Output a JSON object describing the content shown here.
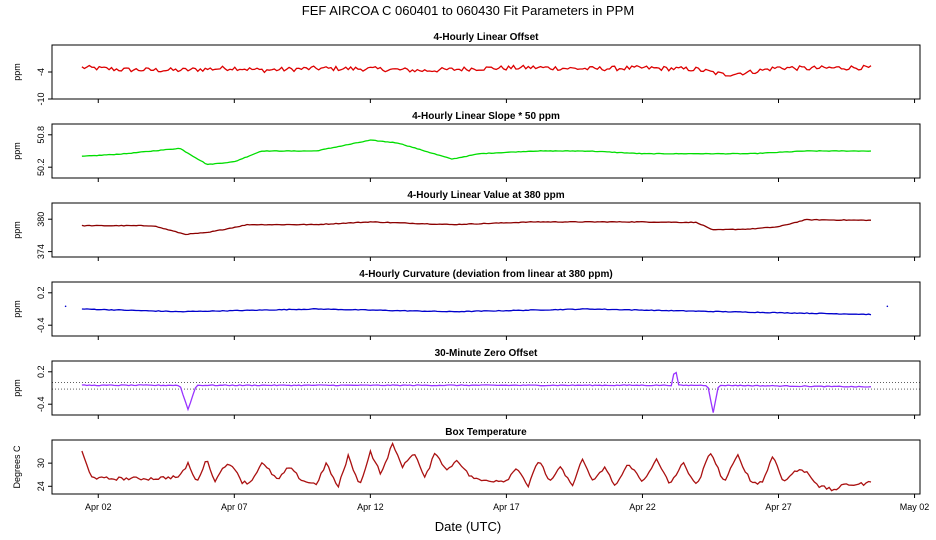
{
  "figure": {
    "title": "FEF   AIRCOA C   060401 to 060430   Fit Parameters in PPM",
    "xlabel": "Date (UTC)",
    "xticks": [
      "Apr 02",
      "Apr 07",
      "Apr 12",
      "Apr 17",
      "Apr 22",
      "Apr 27",
      "May 02"
    ]
  },
  "colors": {
    "offset": "#dd0000",
    "slope": "#00dd00",
    "value": "#8b0000",
    "curvature": "#0000cc",
    "zero": "#9933ff",
    "temperature": "#aa1111"
  },
  "chart_data": [
    {
      "type": "line",
      "title": "4-Hourly Linear Offset",
      "ylabel": "ppm",
      "yticks": [
        "-10",
        "-4"
      ],
      "ylim": [
        -10,
        2
      ],
      "x_range_days": [
        1,
        31
      ],
      "series_color": "offset",
      "x": [
        1.4,
        3,
        5,
        7,
        8,
        10,
        12,
        14,
        16,
        18,
        20,
        22,
        24,
        25,
        26,
        27,
        28,
        30,
        30.4
      ],
      "values": [
        -3,
        -3.5,
        -3.6,
        -3.1,
        -3.6,
        -3.2,
        -3.3,
        -3.7,
        -3.2,
        -3.0,
        -3.3,
        -3.1,
        -3.4,
        -4.6,
        -4.0,
        -3.0,
        -3.2,
        -3.0,
        -3.1
      ]
    },
    {
      "type": "line",
      "title": "4-Hourly Linear Slope * 50 ppm",
      "ylabel": "ppm",
      "yticks": [
        "50.2",
        "50.8"
      ],
      "ylim": [
        50.0,
        51.0
      ],
      "x_range_days": [
        1,
        31
      ],
      "series_color": "slope",
      "x": [
        1.4,
        3,
        5,
        6,
        7,
        8,
        10,
        12,
        13,
        15,
        16,
        18,
        20,
        22,
        24,
        26,
        28,
        30,
        30.4
      ],
      "values": [
        50.4,
        50.45,
        50.55,
        50.25,
        50.3,
        50.5,
        50.5,
        50.7,
        50.65,
        50.35,
        50.45,
        50.5,
        50.5,
        50.45,
        50.45,
        50.45,
        50.5,
        50.5,
        50.5
      ]
    },
    {
      "type": "line",
      "title": "4-Hourly Linear Value at 380 ppm",
      "ylabel": "ppm",
      "yticks": [
        "374",
        "380"
      ],
      "ylim": [
        373,
        383
      ],
      "x_range_days": [
        1,
        31
      ],
      "series_color": "value",
      "x": [
        1.4,
        4,
        5.2,
        6,
        7,
        7.5,
        10,
        12,
        15,
        18,
        22,
        24,
        24.6,
        26,
        27,
        28,
        30.4
      ],
      "values": [
        378.8,
        378.8,
        377.2,
        377.5,
        378.5,
        379.0,
        379.0,
        379.5,
        379.0,
        379.5,
        379.5,
        379.4,
        378.0,
        378.2,
        378.6,
        379.9,
        379.8
      ]
    },
    {
      "type": "line",
      "title": "4-Hourly Curvature (deviation from linear at 380 ppm)",
      "ylabel": "ppm",
      "yticks": [
        "-0.4",
        "0.2"
      ],
      "ylim": [
        -0.6,
        0.4
      ],
      "x_range_days": [
        1,
        31
      ],
      "series_color": "curvature",
      "x": [
        1.4,
        5,
        10,
        15,
        20,
        25,
        30.4
      ],
      "values": [
        -0.1,
        -0.15,
        -0.1,
        -0.15,
        -0.1,
        -0.15,
        -0.2
      ]
    },
    {
      "type": "line",
      "title": "30-Minute Zero Offset",
      "ylabel": "ppm",
      "yticks": [
        "-0.4",
        "0.2"
      ],
      "ylim": [
        -0.6,
        0.4
      ],
      "reference_lines": [
        0.0,
        -0.12
      ],
      "x_range_days": [
        1,
        31
      ],
      "series_color": "zero",
      "x": [
        1.4,
        5.0,
        5.3,
        5.6,
        10,
        15,
        20,
        23.1,
        23.2,
        23.3,
        24.4,
        24.6,
        24.8,
        30.4
      ],
      "values": [
        -0.05,
        -0.05,
        -0.5,
        -0.05,
        -0.05,
        -0.05,
        -0.05,
        -0.05,
        0.35,
        -0.05,
        -0.05,
        -0.55,
        -0.05,
        -0.08
      ]
    },
    {
      "type": "line",
      "title": "Box Temperature",
      "ylabel": "Degrees C",
      "yticks": [
        "24",
        "30"
      ],
      "ylim": [
        22,
        36
      ],
      "x_range_days": [
        1,
        31
      ],
      "series_color": "temperature",
      "x": [
        1.4,
        1.7,
        2,
        3,
        4,
        5,
        5.3,
        5.6,
        6,
        6.3,
        6.6,
        7,
        7.3,
        7.6,
        8,
        8.3,
        8.6,
        9,
        9.5,
        10,
        10.4,
        10.8,
        11.2,
        11.6,
        12,
        12.4,
        12.8,
        13.2,
        13.6,
        14,
        14.4,
        14.8,
        15.2,
        15.6,
        16,
        17,
        17.4,
        17.8,
        18.2,
        18.6,
        19,
        19.4,
        19.8,
        20.2,
        20.6,
        21,
        21.5,
        22,
        22.5,
        23,
        23.5,
        24,
        24.5,
        25,
        25.5,
        26,
        26.4,
        26.8,
        27.2,
        27.6,
        28,
        28.5,
        29,
        29.5,
        30,
        30.4
      ],
      "values": [
        33,
        27,
        26,
        26,
        26,
        26.5,
        30,
        25,
        31,
        25,
        29.5,
        29,
        25,
        25,
        30,
        28,
        25.5,
        29,
        25.5,
        24.5,
        30,
        23.5,
        32,
        24,
        33,
        27,
        35,
        29,
        33,
        26,
        33,
        28,
        31,
        27,
        25.5,
        25.5,
        29,
        24,
        31,
        25,
        29,
        24,
        31,
        25,
        29,
        24,
        30,
        25,
        31,
        24.5,
        30,
        24,
        33,
        25,
        32,
        25,
        25,
        32,
        25,
        28,
        28,
        24,
        23,
        24.5,
        24.5,
        25
      ]
    }
  ]
}
